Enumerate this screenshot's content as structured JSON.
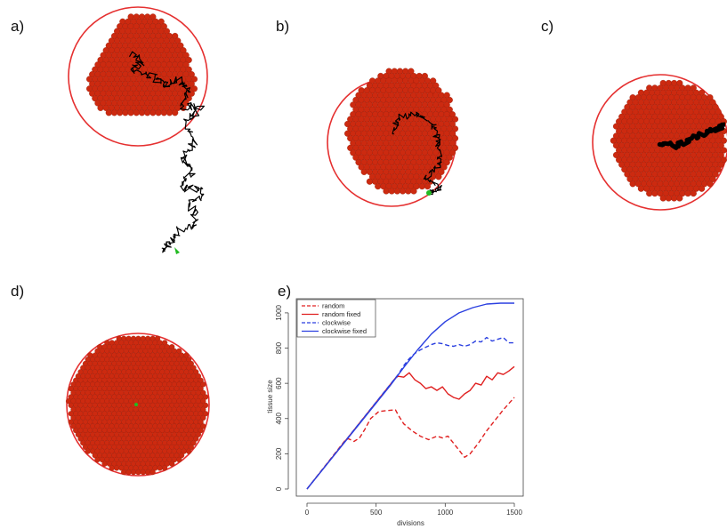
{
  "panels": {
    "a": "a)",
    "b": "b)",
    "c": "c)",
    "d": "d)",
    "e": "e)"
  },
  "colors": {
    "cells": "#cc2a10",
    "boundary": "#e53030",
    "path": "#000000",
    "start": "#22bb22",
    "random": "#e02020",
    "clockwise": "#2a3fe0"
  },
  "chart_data": {
    "type": "line",
    "title": "",
    "xlabel": "divisions",
    "ylabel": "tissue size",
    "xlim": [
      0,
      1500
    ],
    "ylim": [
      0,
      1050
    ],
    "xticks": [
      0,
      500,
      1000,
      1500
    ],
    "yticks": [
      0,
      200,
      400,
      600,
      800,
      1000
    ],
    "grid": false,
    "legend_position": "top-left",
    "series": [
      {
        "name": "random",
        "color": "#e02020",
        "dash": "dashed",
        "x": [
          0,
          280,
          300,
          340,
          380,
          420,
          460,
          520,
          580,
          640,
          660,
          700,
          760,
          820,
          880,
          940,
          980,
          1020,
          1060,
          1100,
          1140,
          1180,
          1240,
          1300,
          1360,
          1420,
          1500
        ],
        "y": [
          0,
          280,
          285,
          270,
          290,
          340,
          400,
          440,
          445,
          450,
          420,
          370,
          330,
          300,
          280,
          300,
          290,
          300,
          260,
          220,
          180,
          200,
          260,
          330,
          390,
          450,
          520
        ]
      },
      {
        "name": "random fixed",
        "color": "#e02020",
        "dash": "solid",
        "x": [
          0,
          640,
          660,
          700,
          740,
          780,
          820,
          860,
          900,
          940,
          980,
          1020,
          1060,
          1100,
          1140,
          1180,
          1220,
          1260,
          1300,
          1340,
          1380,
          1420,
          1460,
          1500
        ],
        "y": [
          0,
          630,
          640,
          635,
          660,
          620,
          600,
          570,
          580,
          560,
          580,
          540,
          520,
          510,
          540,
          560,
          600,
          590,
          640,
          620,
          660,
          650,
          670,
          695
        ]
      },
      {
        "name": "clockwise",
        "color": "#2a3fe0",
        "dash": "dashed",
        "x": [
          0,
          660,
          700,
          740,
          780,
          820,
          860,
          900,
          940,
          980,
          1020,
          1060,
          1100,
          1140,
          1180,
          1220,
          1260,
          1300,
          1340,
          1380,
          1420,
          1460,
          1500
        ],
        "y": [
          0,
          650,
          700,
          740,
          770,
          790,
          805,
          820,
          830,
          825,
          815,
          810,
          820,
          810,
          820,
          840,
          835,
          860,
          840,
          850,
          860,
          830,
          830
        ]
      },
      {
        "name": "clockwise fixed",
        "color": "#2a3fe0",
        "dash": "solid",
        "x": [
          0,
          600,
          700,
          800,
          900,
          1000,
          1100,
          1200,
          1300,
          1400,
          1500
        ],
        "y": [
          0,
          585,
          690,
          790,
          880,
          950,
          1000,
          1030,
          1050,
          1055,
          1055
        ]
      }
    ]
  }
}
